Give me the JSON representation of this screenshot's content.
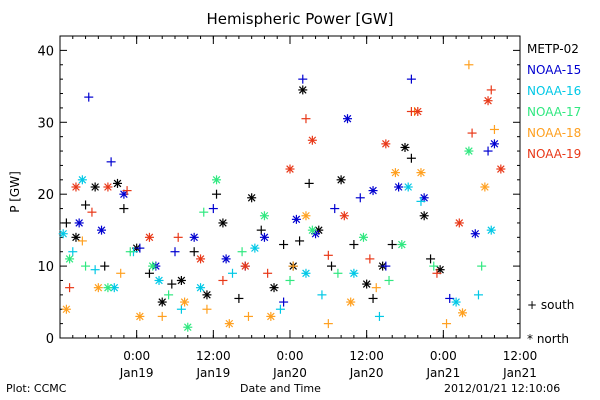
{
  "chart_data": {
    "type": "scatter",
    "title": "Hemispheric Power [GW]",
    "ylabel": "P [GW]",
    "xlabel": "Date and Time",
    "ylim": [
      0,
      42
    ],
    "yticks": [
      0,
      10,
      20,
      30,
      40
    ],
    "xlim": [
      "2012-01-18 12:00",
      "2012-01-21 12:00"
    ],
    "xticks": [
      {
        "time": "0:00",
        "date": "Jan19",
        "at": "2012-01-19 00:00"
      },
      {
        "time": "12:00",
        "date": "Jan19",
        "at": "2012-01-19 12:00"
      },
      {
        "time": "0:00",
        "date": "Jan20",
        "at": "2012-01-20 00:00"
      },
      {
        "time": "12:00",
        "date": "Jan20",
        "at": "2012-01-20 12:00"
      },
      {
        "time": "0:00",
        "date": "Jan21",
        "at": "2012-01-21 00:00"
      },
      {
        "time": "12:00",
        "date": "Jan21",
        "at": "2012-01-21 12:00"
      }
    ],
    "marker_key": [
      {
        "symbol": "+",
        "label": "south"
      },
      {
        "symbol": "*",
        "label": "north"
      }
    ],
    "series": [
      {
        "name": "METP-02",
        "color": "#000000",
        "points": [
          [
            "2012-01-18 13:00",
            16,
            "+"
          ],
          [
            "2012-01-18 14:30",
            14,
            "*"
          ],
          [
            "2012-01-18 16:00",
            18.5,
            "+"
          ],
          [
            "2012-01-18 17:30",
            21,
            "*"
          ],
          [
            "2012-01-18 19:00",
            10,
            "+"
          ],
          [
            "2012-01-18 21:00",
            21.5,
            "*"
          ],
          [
            "2012-01-18 22:00",
            18,
            "+"
          ],
          [
            "2012-01-19 00:00",
            12.5,
            "*"
          ],
          [
            "2012-01-19 02:00",
            9,
            "+"
          ],
          [
            "2012-01-19 04:00",
            5,
            "*"
          ],
          [
            "2012-01-19 05:30",
            7.5,
            "+"
          ],
          [
            "2012-01-19 07:00",
            8,
            "*"
          ],
          [
            "2012-01-19 09:00",
            12,
            "+"
          ],
          [
            "2012-01-19 11:00",
            6,
            "*"
          ],
          [
            "2012-01-19 12:30",
            20,
            "+"
          ],
          [
            "2012-01-19 13:30",
            16,
            "*"
          ],
          [
            "2012-01-19 16:00",
            5.5,
            "+"
          ],
          [
            "2012-01-19 18:00",
            19.5,
            "*"
          ],
          [
            "2012-01-19 19:30",
            15,
            "+"
          ],
          [
            "2012-01-19 21:30",
            7,
            "*"
          ],
          [
            "2012-01-19 23:00",
            13,
            "+"
          ],
          [
            "2012-01-20 00:30",
            10,
            "*"
          ],
          [
            "2012-01-20 01:30",
            13.5,
            "+"
          ],
          [
            "2012-01-20 02:00",
            34.5,
            "*"
          ],
          [
            "2012-01-20 03:00",
            21.5,
            "+"
          ],
          [
            "2012-01-20 04:30",
            15,
            "*"
          ],
          [
            "2012-01-20 06:30",
            10,
            "+"
          ],
          [
            "2012-01-20 08:00",
            22,
            "*"
          ],
          [
            "2012-01-20 10:00",
            13,
            "+"
          ],
          [
            "2012-01-20 12:00",
            7.5,
            "*"
          ],
          [
            "2012-01-20 13:00",
            5.5,
            "+"
          ],
          [
            "2012-01-20 14:30",
            10,
            "*"
          ],
          [
            "2012-01-20 16:00",
            13,
            "+"
          ],
          [
            "2012-01-20 18:00",
            26.5,
            "*"
          ],
          [
            "2012-01-20 19:00",
            25,
            "+"
          ],
          [
            "2012-01-20 21:00",
            17,
            "*"
          ],
          [
            "2012-01-20 22:00",
            11,
            "+"
          ],
          [
            "2012-01-20 23:30",
            9.5,
            "*"
          ]
        ]
      },
      {
        "name": "NOAA-15",
        "color": "#0000d0",
        "points": [
          [
            "2012-01-18 15:00",
            16,
            "*"
          ],
          [
            "2012-01-18 16:30",
            33.5,
            "+"
          ],
          [
            "2012-01-18 18:30",
            15,
            "*"
          ],
          [
            "2012-01-18 20:00",
            24.5,
            "+"
          ],
          [
            "2012-01-18 22:00",
            20,
            "*"
          ],
          [
            "2012-01-19 00:30",
            12.5,
            "+"
          ],
          [
            "2012-01-19 03:00",
            10,
            "*"
          ],
          [
            "2012-01-19 06:00",
            12,
            "+"
          ],
          [
            "2012-01-19 09:00",
            14,
            "*"
          ],
          [
            "2012-01-19 12:00",
            18,
            "+"
          ],
          [
            "2012-01-19 14:00",
            11,
            "*"
          ],
          [
            "2012-01-19 17:00",
            10,
            "+"
          ],
          [
            "2012-01-19 20:00",
            14,
            "*"
          ],
          [
            "2012-01-19 23:00",
            5,
            "+"
          ],
          [
            "2012-01-20 01:00",
            16.5,
            "*"
          ],
          [
            "2012-01-20 02:00",
            36,
            "+"
          ],
          [
            "2012-01-20 04:00",
            14.5,
            "*"
          ],
          [
            "2012-01-20 07:00",
            18,
            "+"
          ],
          [
            "2012-01-20 09:00",
            30.5,
            "*"
          ],
          [
            "2012-01-20 11:00",
            19.5,
            "+"
          ],
          [
            "2012-01-20 13:00",
            20.5,
            "*"
          ],
          [
            "2012-01-20 15:00",
            10,
            "+"
          ],
          [
            "2012-01-20 17:00",
            21,
            "*"
          ],
          [
            "2012-01-20 19:00",
            36,
            "+"
          ],
          [
            "2012-01-20 21:00",
            19.5,
            "*"
          ],
          [
            "2012-01-21 01:00",
            5.5,
            "+"
          ],
          [
            "2012-01-21 05:00",
            14.5,
            "*"
          ],
          [
            "2012-01-21 07:00",
            26,
            "+"
          ],
          [
            "2012-01-21 08:00",
            27,
            "*"
          ]
        ]
      },
      {
        "name": "NOAA-16",
        "color": "#00c8e6",
        "points": [
          [
            "2012-01-18 12:30",
            14.5,
            "*"
          ],
          [
            "2012-01-18 14:00",
            12,
            "+"
          ],
          [
            "2012-01-18 15:30",
            22,
            "*"
          ],
          [
            "2012-01-18 17:30",
            9.5,
            "+"
          ],
          [
            "2012-01-18 20:30",
            7,
            "*"
          ],
          [
            "2012-01-18 23:30",
            12,
            "+"
          ],
          [
            "2012-01-19 03:30",
            8,
            "*"
          ],
          [
            "2012-01-19 07:00",
            4,
            "+"
          ],
          [
            "2012-01-19 10:00",
            7,
            "*"
          ],
          [
            "2012-01-19 15:00",
            9,
            "+"
          ],
          [
            "2012-01-19 18:30",
            12.5,
            "*"
          ],
          [
            "2012-01-19 22:30",
            4,
            "+"
          ],
          [
            "2012-01-20 02:30",
            9,
            "*"
          ],
          [
            "2012-01-20 05:00",
            6,
            "+"
          ],
          [
            "2012-01-20 10:00",
            9,
            "*"
          ],
          [
            "2012-01-20 14:00",
            3,
            "+"
          ],
          [
            "2012-01-20 18:30",
            21,
            "*"
          ],
          [
            "2012-01-20 20:30",
            19,
            "+"
          ],
          [
            "2012-01-21 02:00",
            5,
            "*"
          ],
          [
            "2012-01-21 05:30",
            6,
            "+"
          ],
          [
            "2012-01-21 07:30",
            15,
            "*"
          ]
        ]
      },
      {
        "name": "NOAA-17",
        "color": "#30e880",
        "points": [
          [
            "2012-01-18 13:30",
            11,
            "*"
          ],
          [
            "2012-01-18 16:00",
            10,
            "+"
          ],
          [
            "2012-01-18 19:30",
            7,
            "*"
          ],
          [
            "2012-01-18 23:00",
            12,
            "+"
          ],
          [
            "2012-01-19 02:30",
            10,
            "*"
          ],
          [
            "2012-01-19 05:00",
            6,
            "+"
          ],
          [
            "2012-01-19 08:00",
            1.5,
            "*"
          ],
          [
            "2012-01-19 10:30",
            17.5,
            "+"
          ],
          [
            "2012-01-19 12:30",
            22,
            "*"
          ],
          [
            "2012-01-19 16:30",
            12,
            "+"
          ],
          [
            "2012-01-19 20:00",
            17,
            "*"
          ],
          [
            "2012-01-20 00:00",
            8,
            "+"
          ],
          [
            "2012-01-20 03:30",
            15,
            "*"
          ],
          [
            "2012-01-20 07:30",
            9,
            "+"
          ],
          [
            "2012-01-20 11:30",
            14,
            "*"
          ],
          [
            "2012-01-20 15:30",
            8,
            "+"
          ],
          [
            "2012-01-20 17:30",
            13,
            "*"
          ],
          [
            "2012-01-20 22:30",
            10,
            "+"
          ],
          [
            "2012-01-21 04:00",
            26,
            "*"
          ],
          [
            "2012-01-21 06:00",
            10,
            "+"
          ]
        ]
      },
      {
        "name": "NOAA-18",
        "color": "#ffa020",
        "points": [
          [
            "2012-01-18 13:00",
            4,
            "*"
          ],
          [
            "2012-01-18 15:30",
            13.5,
            "+"
          ],
          [
            "2012-01-18 18:00",
            7,
            "*"
          ],
          [
            "2012-01-18 21:30",
            9,
            "+"
          ],
          [
            "2012-01-19 00:30",
            3,
            "*"
          ],
          [
            "2012-01-19 04:00",
            3,
            "+"
          ],
          [
            "2012-01-19 07:30",
            5,
            "*"
          ],
          [
            "2012-01-19 11:00",
            4,
            "+"
          ],
          [
            "2012-01-19 14:30",
            2,
            "*"
          ],
          [
            "2012-01-19 17:30",
            3,
            "+"
          ],
          [
            "2012-01-19 21:00",
            3,
            "*"
          ],
          [
            "2012-01-20 00:30",
            10,
            "+"
          ],
          [
            "2012-01-20 02:30",
            17,
            "*"
          ],
          [
            "2012-01-20 06:00",
            2,
            "+"
          ],
          [
            "2012-01-20 09:30",
            5,
            "*"
          ],
          [
            "2012-01-20 13:30",
            7,
            "+"
          ],
          [
            "2012-01-20 16:30",
            23,
            "*"
          ],
          [
            "2012-01-20 19:30",
            31.5,
            "+"
          ],
          [
            "2012-01-20 20:30",
            23,
            "*"
          ],
          [
            "2012-01-21 00:30",
            2,
            "+"
          ],
          [
            "2012-01-21 03:00",
            3.5,
            "*"
          ],
          [
            "2012-01-21 04:00",
            38,
            "+"
          ],
          [
            "2012-01-21 06:30",
            21,
            "*"
          ],
          [
            "2012-01-21 08:00",
            29,
            "+"
          ]
        ]
      },
      {
        "name": "NOAA-19",
        "color": "#e83818",
        "points": [
          [
            "2012-01-18 13:30",
            7,
            "+"
          ],
          [
            "2012-01-18 14:30",
            21,
            "*"
          ],
          [
            "2012-01-18 17:00",
            17.5,
            "+"
          ],
          [
            "2012-01-18 19:30",
            21,
            "*"
          ],
          [
            "2012-01-18 22:30",
            20.5,
            "+"
          ],
          [
            "2012-01-19 02:00",
            14,
            "*"
          ],
          [
            "2012-01-19 06:30",
            14,
            "+"
          ],
          [
            "2012-01-19 10:00",
            11,
            "*"
          ],
          [
            "2012-01-19 13:30",
            8,
            "+"
          ],
          [
            "2012-01-19 17:00",
            10,
            "*"
          ],
          [
            "2012-01-19 20:30",
            9,
            "+"
          ],
          [
            "2012-01-20 00:00",
            23.5,
            "*"
          ],
          [
            "2012-01-20 02:30",
            30.5,
            "+"
          ],
          [
            "2012-01-20 03:30",
            27.5,
            "*"
          ],
          [
            "2012-01-20 06:00",
            11.5,
            "+"
          ],
          [
            "2012-01-20 08:30",
            17,
            "*"
          ],
          [
            "2012-01-20 12:30",
            11,
            "+"
          ],
          [
            "2012-01-20 15:00",
            27,
            "*"
          ],
          [
            "2012-01-20 19:00",
            31.5,
            "+"
          ],
          [
            "2012-01-20 20:00",
            31.5,
            "*"
          ],
          [
            "2012-01-20 23:00",
            9,
            "+"
          ],
          [
            "2012-01-21 02:30",
            16,
            "*"
          ],
          [
            "2012-01-21 04:30",
            28.5,
            "+"
          ],
          [
            "2012-01-21 07:00",
            33,
            "*"
          ],
          [
            "2012-01-21 07:30",
            34.5,
            "+"
          ],
          [
            "2012-01-21 09:00",
            23.5,
            "*"
          ]
        ]
      }
    ]
  },
  "footer": {
    "left": "Plot: CCMC",
    "center": "Date and Time",
    "right": "2012/01/21 12:10:06"
  },
  "marker_key": {
    "south": "+ south",
    "north": "* north"
  }
}
